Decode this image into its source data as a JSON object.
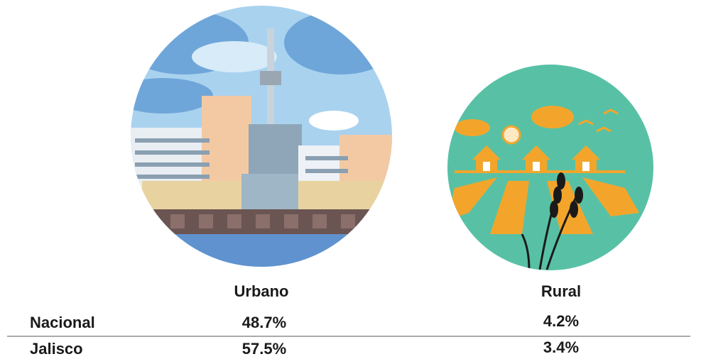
{
  "table": {
    "columns": [
      "Urbano",
      "Rural"
    ],
    "rows": [
      {
        "label": "Nacional",
        "cells": [
          "48.7%",
          "4.2%"
        ]
      },
      {
        "label": "Jalisco",
        "cells": [
          "57.5%",
          "3.4%"
        ]
      }
    ]
  }
}
